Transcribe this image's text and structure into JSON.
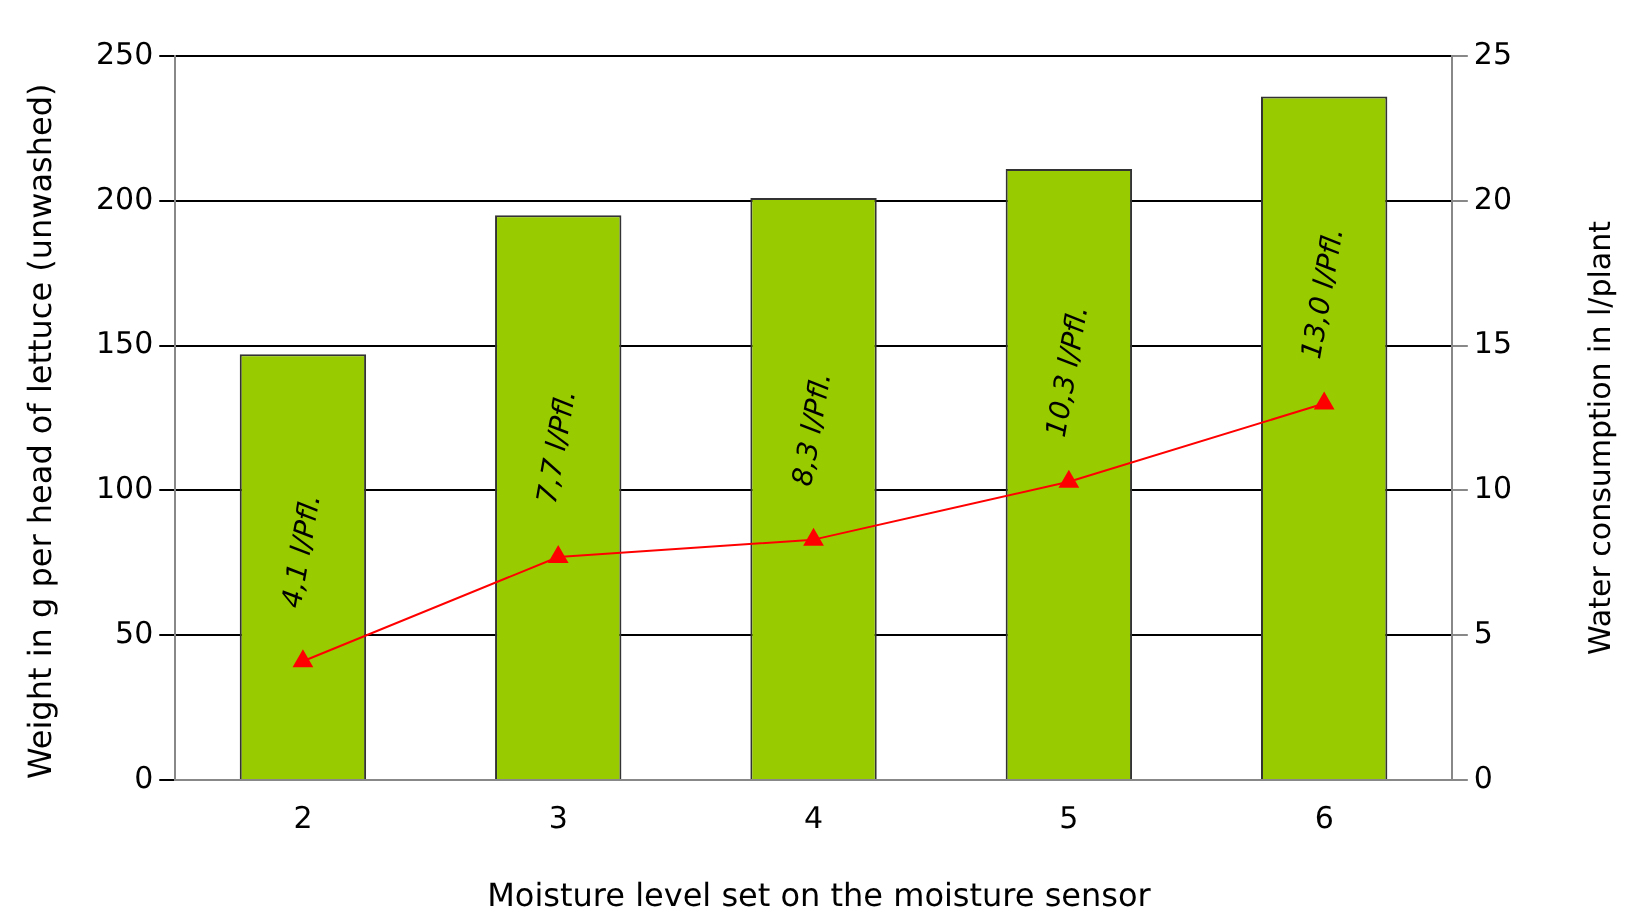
{
  "chart_data": {
    "type": "bar",
    "xlabel": "Moisture level set on the moisture sensor",
    "ylabel": "Weight in g per head of lettuce (unwashed)",
    "y2label": "Water consumption in l/plant",
    "categories": [
      "2",
      "3",
      "4",
      "5",
      "6"
    ],
    "series": [
      {
        "color": "#99cc00",
        "values": [
          147,
          195,
          201,
          211,
          236
        ]
      },
      {
        "type": "line",
        "axis": "y2",
        "color": "#ff0000",
        "marker": "triangle",
        "values": [
          4.1,
          7.7,
          8.3,
          10.3,
          13.0
        ],
        "value_labels": [
          "4,1 l/Pfl.",
          "7,7 l/Pfl.",
          "8,3 l/Pfl.",
          "10,3 l/Pfl.",
          "13,0 l/Pfl."
        ]
      }
    ],
    "ylim": [
      0,
      250
    ],
    "yticks": [
      0,
      50,
      100,
      150,
      200,
      250
    ],
    "y2lim": [
      0,
      25
    ],
    "y2ticks": [
      0,
      5,
      10,
      15,
      20,
      25
    ],
    "grid": "y",
    "legend": false
  }
}
